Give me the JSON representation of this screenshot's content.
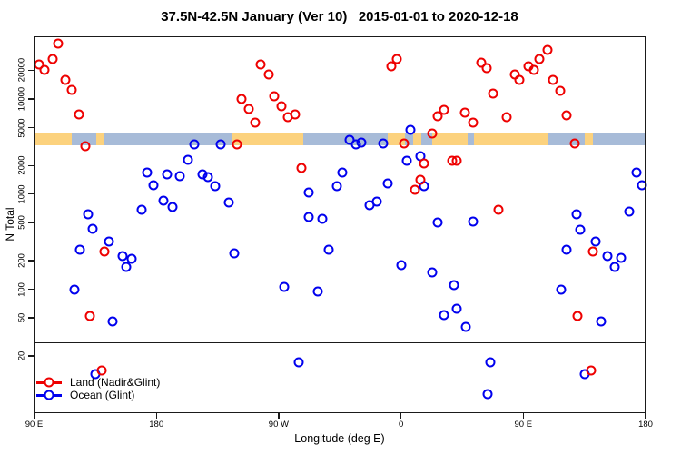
{
  "title": "37.5N-42.5N January (Ver 10)   2015-01-01 to 2020-12-18",
  "chart_data": {
    "type": "scatter",
    "title": "37.5N-42.5N January (Ver 10)   2015-01-01 to 2020-12-18",
    "xlabel": "Longitude (deg E)",
    "ylabel": "N Total",
    "x_axis": {
      "min": 90,
      "max": 540,
      "ticks": [
        {
          "value": 90,
          "label": "90 E"
        },
        {
          "value": 180,
          "label": "180"
        },
        {
          "value": 270,
          "label": "90 W"
        },
        {
          "value": 360,
          "label": "0"
        },
        {
          "value": 450,
          "label": "90 E"
        },
        {
          "value": 540,
          "label": "180"
        }
      ]
    },
    "y_axis": {
      "scale": "log",
      "min": 5,
      "max": 45000,
      "ticks": [
        {
          "value": 20000,
          "label": "20000"
        },
        {
          "value": 10000,
          "label": "10000"
        },
        {
          "value": 5000,
          "label": "5000"
        },
        {
          "value": 2000,
          "label": "2000"
        },
        {
          "value": 1000,
          "label": "1000"
        },
        {
          "value": 500,
          "label": "500"
        },
        {
          "value": 200,
          "label": "200"
        },
        {
          "value": 100,
          "label": "100"
        },
        {
          "value": 50,
          "label": "50"
        },
        {
          "value": 20,
          "label": "20"
        }
      ]
    },
    "divider_value": 28,
    "map_band": {
      "top_value": 4400,
      "bottom_value": 3250,
      "land_color": "#fcd27e",
      "ocean_color": "#a7bbd8",
      "segments": [
        {
          "from": 90,
          "to": 118,
          "type": "land"
        },
        {
          "from": 118,
          "to": 135.5,
          "type": "ocean"
        },
        {
          "from": 135.5,
          "to": 141.5,
          "type": "land"
        },
        {
          "from": 141.5,
          "to": 235.5,
          "type": "ocean"
        },
        {
          "from": 235.5,
          "to": 288,
          "type": "land"
        },
        {
          "from": 288,
          "to": 350.5,
          "type": "ocean"
        },
        {
          "from": 350.5,
          "to": 363,
          "type": "land"
        },
        {
          "from": 363,
          "to": 369,
          "type": "ocean"
        },
        {
          "from": 369,
          "to": 375,
          "type": "land"
        },
        {
          "from": 375,
          "to": 383,
          "type": "ocean"
        },
        {
          "from": 383,
          "to": 409,
          "type": "land"
        },
        {
          "from": 409,
          "to": 414,
          "type": "ocean"
        },
        {
          "from": 414,
          "to": 468,
          "type": "land"
        },
        {
          "from": 468,
          "to": 495.5,
          "type": "ocean"
        },
        {
          "from": 495.5,
          "to": 501.5,
          "type": "land"
        },
        {
          "from": 501.5,
          "to": 540,
          "type": "ocean"
        }
      ]
    },
    "series": [
      {
        "name": "Ocean (Glint)",
        "color": "#0000ee",
        "points": [
          [
            203,
            2300
          ],
          [
            208,
            3300
          ],
          [
            227,
            3300
          ],
          [
            173,
            1700
          ],
          [
            188,
            1630
          ],
          [
            197,
            1560
          ],
          [
            178,
            1250
          ],
          [
            185,
            845
          ],
          [
            192,
            740
          ],
          [
            169,
            680
          ],
          [
            130,
            620
          ],
          [
            133,
            430
          ],
          [
            124,
            260
          ],
          [
            145,
            320
          ],
          [
            155,
            225
          ],
          [
            162,
            210
          ],
          [
            158,
            170
          ],
          [
            120,
            100
          ],
          [
            148,
            46
          ],
          [
            135,
            13
          ],
          [
            214,
            1600
          ],
          [
            218,
            1500
          ],
          [
            223,
            1200
          ],
          [
            233,
            810
          ],
          [
            237,
            240
          ],
          [
            274,
            105
          ],
          [
            292,
            1050
          ],
          [
            292,
            580
          ],
          [
            302,
            545
          ],
          [
            313,
            1200
          ],
          [
            307,
            260
          ],
          [
            299,
            94
          ],
          [
            285,
            17
          ],
          [
            317,
            1700
          ],
          [
            322,
            3700
          ],
          [
            327,
            3300
          ],
          [
            331,
            3500
          ],
          [
            347,
            3400
          ],
          [
            350,
            1300
          ],
          [
            337,
            760
          ],
          [
            342,
            830
          ],
          [
            367,
            4700
          ],
          [
            364,
            2260
          ],
          [
            374,
            2500
          ],
          [
            377,
            1220
          ],
          [
            387,
            500
          ],
          [
            413,
            510
          ],
          [
            360,
            180
          ],
          [
            383,
            150
          ],
          [
            399,
            110
          ],
          [
            392,
            54
          ],
          [
            401,
            62
          ],
          [
            408,
            40
          ],
          [
            426,
            17
          ],
          [
            424,
            8
          ],
          [
            533,
            1700
          ],
          [
            537,
            1250
          ],
          [
            528,
            660
          ],
          [
            489,
            620
          ],
          [
            492,
            420
          ],
          [
            503,
            320
          ],
          [
            482,
            260
          ],
          [
            512,
            225
          ],
          [
            522,
            212
          ],
          [
            517,
            170
          ],
          [
            478,
            100
          ],
          [
            507,
            46
          ],
          [
            495,
            13
          ]
        ]
      },
      {
        "name": "Land (Nadir&Glint)",
        "color": "#ee0000",
        "points": [
          [
            108,
            38000
          ],
          [
            104,
            26000
          ],
          [
            94,
            23000
          ],
          [
            98,
            20000
          ],
          [
            113,
            16000
          ],
          [
            118,
            12500
          ],
          [
            123,
            6900
          ],
          [
            128,
            3200
          ],
          [
            142,
            250
          ],
          [
            131,
            53
          ],
          [
            140,
            14
          ],
          [
            257,
            23000
          ],
          [
            263,
            18200
          ],
          [
            267,
            10700
          ],
          [
            243,
            10000
          ],
          [
            272,
            8400
          ],
          [
            248,
            7900
          ],
          [
            282,
            6900
          ],
          [
            277,
            6400
          ],
          [
            253,
            5700
          ],
          [
            239,
            3300
          ],
          [
            287,
            1900
          ],
          [
            357,
            26000
          ],
          [
            353,
            22200
          ],
          [
            362,
            3400
          ],
          [
            377,
            2100
          ],
          [
            374,
            1430
          ],
          [
            370,
            1100
          ],
          [
            383,
            4300
          ],
          [
            387,
            6600
          ],
          [
            392,
            7600
          ],
          [
            398,
            2260
          ],
          [
            401,
            2260
          ],
          [
            407,
            7200
          ],
          [
            413,
            5600
          ],
          [
            419,
            24000
          ],
          [
            423,
            21000
          ],
          [
            428,
            11500
          ],
          [
            432,
            690
          ],
          [
            438,
            6400
          ],
          [
            468,
            33000
          ],
          [
            462,
            26000
          ],
          [
            454,
            22000
          ],
          [
            458,
            20300
          ],
          [
            444,
            18200
          ],
          [
            447,
            16000
          ],
          [
            472,
            16000
          ],
          [
            477,
            12200
          ],
          [
            482,
            6800
          ],
          [
            488,
            3400
          ],
          [
            490,
            53
          ],
          [
            500,
            14
          ],
          [
            501,
            250
          ]
        ]
      }
    ],
    "legend": {
      "position": "bottom-left",
      "entries": [
        {
          "label": "Land (Nadir&Glint)",
          "color": "#ee0000"
        },
        {
          "label": "Ocean (Glint)",
          "color": "#0000ee"
        }
      ]
    }
  }
}
